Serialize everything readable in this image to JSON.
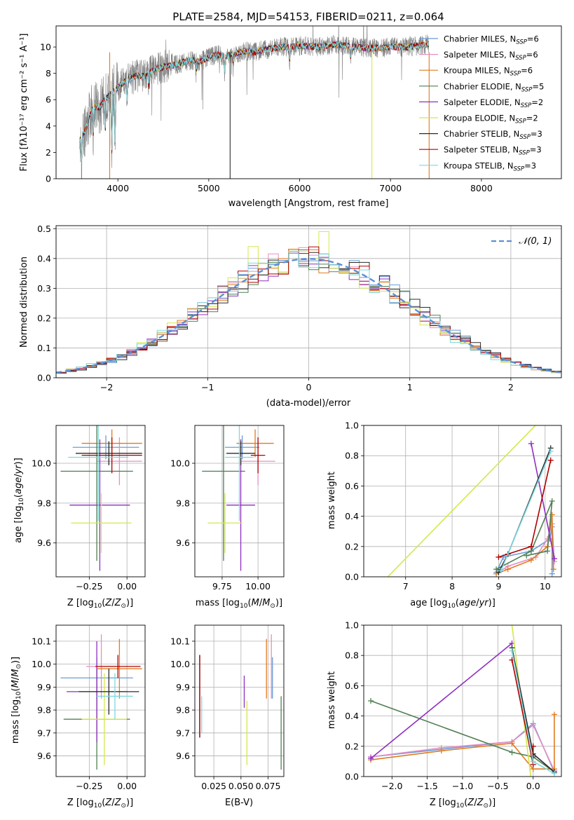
{
  "title": "PLATE=2584, MJD=54153, FIBERID=0211, z=0.064",
  "colors": {
    "chabrier_miles": "#6a9bd8",
    "salpeter_miles": "#e58fc3",
    "kroupa_miles": "#e07b20",
    "chabrier_elodie": "#4f7f52",
    "salpeter_elodie": "#8f2fbf",
    "kroupa_elodie": "#d4e84a",
    "chabrier_stelib": "#2b2b2b",
    "salpeter_stelib": "#b00000",
    "kroupa_stelib": "#7dd8e0",
    "gaussian": "#5b8fd6"
  },
  "chart_data": [
    {
      "id": "spectrum",
      "type": "line",
      "title": "PLATE=2584, MJD=54153, FIBERID=0211, z=0.064",
      "xlabel": "wavelength [Angstrom, rest frame]",
      "ylabel": "Flux [fλ10⁻¹⁷ erg cm⁻² s⁻¹ A⁻¹]",
      "xlim": [
        3320,
        8880
      ],
      "ylim": [
        0,
        11.6
      ],
      "xticks": [
        4000,
        5000,
        6000,
        7000,
        8000
      ],
      "yticks": [
        0,
        2,
        4,
        6,
        8,
        10
      ],
      "grid": false,
      "legend_position": "top-right",
      "continuum": {
        "x": [
          3580,
          3650,
          3700,
          3750,
          3800,
          3850,
          3900,
          3950,
          4000,
          4100,
          4200,
          4300,
          4400,
          4500,
          4600,
          4700,
          4800,
          4900,
          5000,
          5100,
          5200,
          5300,
          5400,
          5500,
          5600,
          5700,
          5800,
          5900,
          6000,
          6200,
          6400,
          6600,
          6800,
          7000,
          7200,
          7400
        ],
        "y": [
          3.0,
          3.8,
          5.0,
          5.5,
          5.4,
          6.0,
          6.3,
          6.6,
          6.9,
          7.5,
          7.8,
          7.8,
          8.3,
          8.5,
          8.6,
          8.8,
          9.0,
          8.9,
          9.2,
          9.4,
          9.3,
          9.5,
          9.7,
          9.6,
          9.8,
          9.9,
          10.0,
          10.0,
          10.1,
          10.0,
          10.2,
          10.0,
          9.9,
          10.0,
          10.0,
          10.2
        ]
      },
      "series": [
        {
          "name": "Chabrier MILES, N_SSP=6",
          "color_key": "chabrier_miles"
        },
        {
          "name": "Salpeter MILES, N_SSP=6",
          "color_key": "salpeter_miles"
        },
        {
          "name": "Kroupa MILES, N_SSP=6",
          "color_key": "kroupa_miles"
        },
        {
          "name": "Chabrier ELODIE, N_SSP=5",
          "color_key": "chabrier_elodie"
        },
        {
          "name": "Salpeter ELODIE, N_SSP=2",
          "color_key": "salpeter_elodie"
        },
        {
          "name": "Kroupa ELODIE, N_SSP=2",
          "color_key": "kroupa_elodie"
        },
        {
          "name": "Chabrier STELIB, N_SSP=3",
          "color_key": "chabrier_stelib"
        },
        {
          "name": "Salpeter STELIB, N_SSP=3",
          "color_key": "salpeter_stelib"
        },
        {
          "name": "Kroupa STELIB, N_SSP=3",
          "color_key": "kroupa_stelib"
        }
      ],
      "legend_entries": [
        {
          "text": "Chabrier MILES, N",
          "sub": "SSP",
          "suffix": "=6",
          "color_key": "chabrier_miles"
        },
        {
          "text": "Salpeter MILES, N",
          "sub": "SSP",
          "suffix": "=6",
          "color_key": "salpeter_miles"
        },
        {
          "text": "Kroupa MILES, N",
          "sub": "SSP",
          "suffix": "=6",
          "color_key": "kroupa_miles"
        },
        {
          "text": "Chabrier ELODIE, N",
          "sub": "SSP",
          "suffix": "=5",
          "color_key": "chabrier_elodie"
        },
        {
          "text": "Salpeter ELODIE, N",
          "sub": "SSP",
          "suffix": "=2",
          "color_key": "salpeter_elodie"
        },
        {
          "text": "Kroupa ELODIE, N",
          "sub": "SSP",
          "suffix": "=2",
          "color_key": "kroupa_elodie"
        },
        {
          "text": "Chabrier STELIB, N",
          "sub": "SSP",
          "suffix": "=3",
          "color_key": "chabrier_stelib"
        },
        {
          "text": "Salpeter STELIB, N",
          "sub": "SSP",
          "suffix": "=3",
          "color_key": "salpeter_stelib"
        },
        {
          "text": "Kroupa STELIB, N",
          "sub": "SSP",
          "suffix": "=3",
          "color_key": "kroupa_stelib"
        }
      ]
    },
    {
      "id": "residuals",
      "type": "histogram",
      "xlabel": "(data-model)/error",
      "ylabel": "Normed distribution",
      "xlim": [
        -2.5,
        2.5
      ],
      "ylim": [
        0,
        0.51
      ],
      "xticks": [
        -2,
        -1,
        0,
        1,
        2
      ],
      "yticks": [
        0.0,
        0.1,
        0.2,
        0.3,
        0.4,
        0.5
      ],
      "grid": true,
      "legend_position": "top-right",
      "legend": "N(0,1)",
      "bin_width": 0.1,
      "gaussian": {
        "mean": 0,
        "sigma": 1
      }
    },
    {
      "id": "age_vs_Z",
      "type": "errorbar",
      "xlabel": "Z [log10(Z/Z☉)]",
      "ylabel": "age  [log10(age/yr)]",
      "xlim": [
        -0.47,
        0.12
      ],
      "ylim": [
        9.43,
        10.19
      ],
      "xticks": [
        -0.25,
        0.0
      ],
      "xtick_labels": [
        "−0.25",
        "0.00"
      ],
      "yticks": [
        9.6,
        9.8,
        10.0
      ],
      "ytick_labels": [
        "9.6",
        "9.8",
        "10.0"
      ],
      "grid": true,
      "points": [
        {
          "color_key": "chabrier_miles",
          "x": -0.14,
          "xerr": 0.22,
          "y": 10.08,
          "yerr": 0.06
        },
        {
          "color_key": "salpeter_miles",
          "x": -0.05,
          "xerr": 0.15,
          "y": 10.01,
          "yerr": 0.12
        },
        {
          "color_key": "kroupa_miles",
          "x": -0.1,
          "xerr": 0.2,
          "y": 10.1,
          "yerr": 0.07
        },
        {
          "color_key": "chabrier_elodie",
          "x": -0.2,
          "xerr": 0.24,
          "y": 9.96,
          "yerr": 0.45
        },
        {
          "color_key": "salpeter_elodie",
          "x": -0.18,
          "xerr": 0.2,
          "y": 9.79,
          "yerr": 0.33
        },
        {
          "color_key": "kroupa_elodie",
          "x": -0.17,
          "xerr": 0.2,
          "y": 9.7,
          "yerr": 0.15
        },
        {
          "color_key": "chabrier_stelib",
          "x": -0.12,
          "xerr": 0.22,
          "y": 10.05,
          "yerr": 0.06
        },
        {
          "color_key": "salpeter_stelib",
          "x": -0.1,
          "xerr": 0.2,
          "y": 10.04,
          "yerr": 0.09
        },
        {
          "color_key": "kroupa_stelib",
          "x": -0.19,
          "xerr": 0.2,
          "y": 10.03,
          "yerr": 0.32
        }
      ]
    },
    {
      "id": "age_vs_mass",
      "type": "errorbar",
      "xlabel": "mass [log10(M/M☉)]",
      "ylabel": "",
      "xlim": [
        9.56,
        10.18
      ],
      "ylim": [
        9.43,
        10.19
      ],
      "xticks": [
        9.75,
        10.0
      ],
      "xtick_labels": [
        "9.75",
        "10.00"
      ],
      "yticks": [
        9.6,
        9.8,
        10.0
      ],
      "ytick_labels": [
        "9.6",
        "9.8",
        "10.0"
      ],
      "grid": true,
      "points": [
        {
          "color_key": "chabrier_miles",
          "x": 9.89,
          "xerr": 0.12,
          "y": 10.08,
          "yerr": 0.06
        },
        {
          "color_key": "salpeter_miles",
          "x": 10.0,
          "xerr": 0.12,
          "y": 10.01,
          "yerr": 0.12
        },
        {
          "color_key": "kroupa_miles",
          "x": 9.98,
          "xerr": 0.13,
          "y": 10.1,
          "yerr": 0.07
        },
        {
          "color_key": "chabrier_elodie",
          "x": 9.76,
          "xerr": 0.15,
          "y": 9.96,
          "yerr": 0.45
        },
        {
          "color_key": "salpeter_elodie",
          "x": 9.88,
          "xerr": 0.1,
          "y": 9.79,
          "yerr": 0.33
        },
        {
          "color_key": "kroupa_elodie",
          "x": 9.77,
          "xerr": 0.12,
          "y": 9.7,
          "yerr": 0.15
        },
        {
          "color_key": "chabrier_stelib",
          "x": 9.88,
          "xerr": 0.1,
          "y": 10.05,
          "yerr": 0.06
        },
        {
          "color_key": "salpeter_stelib",
          "x": 10.0,
          "xerr": 0.05,
          "y": 10.04,
          "yerr": 0.09
        },
        {
          "color_key": "kroupa_stelib",
          "x": 9.87,
          "xerr": 0.1,
          "y": 10.03,
          "yerr": 0.32
        }
      ]
    },
    {
      "id": "weight_vs_age",
      "type": "line",
      "xlabel": "age  [log10(age/yr)]",
      "ylabel": "mass weight",
      "xlim": [
        6.1,
        10.35
      ],
      "ylim": [
        0,
        1.0
      ],
      "xticks": [
        7,
        8,
        9,
        10
      ],
      "xtick_labels": [
        "7",
        "8",
        "9",
        "10"
      ],
      "yticks": [
        0.0,
        0.2,
        0.4,
        0.6,
        0.8,
        1.0
      ],
      "ytick_labels": [
        "0.0",
        "0.2",
        "0.4",
        "0.6",
        "0.8",
        "1.0"
      ],
      "grid": true,
      "series": [
        {
          "color_key": "chabrier_miles",
          "x": [
            8.95,
            9.1,
            9.7,
            10.1,
            10.15,
            10.15
          ],
          "y": [
            0.03,
            0.13,
            0.17,
            0.25,
            0.33,
            0.02
          ]
        },
        {
          "color_key": "salpeter_miles",
          "x": [
            9.0,
            9.2,
            9.8,
            10.05,
            10.15,
            10.2
          ],
          "y": [
            0.03,
            0.07,
            0.13,
            0.25,
            0.35,
            0.1
          ]
        },
        {
          "color_key": "kroupa_miles",
          "x": [
            8.95,
            9.2,
            9.7,
            10.05,
            10.15,
            10.18
          ],
          "y": [
            0.02,
            0.05,
            0.11,
            0.2,
            0.41,
            0.05
          ]
        },
        {
          "color_key": "chabrier_elodie",
          "x": [
            8.95,
            9.7,
            10.15,
            10.05,
            9.6
          ],
          "y": [
            0.05,
            0.17,
            0.5,
            0.17,
            0.14
          ]
        },
        {
          "color_key": "salpeter_elodie",
          "x": [
            9.7,
            10.2
          ],
          "y": [
            0.88,
            0.12
          ]
        },
        {
          "color_key": "kroupa_elodie",
          "x": [
            6.3,
            9.95
          ],
          "y": [
            -0.1,
            1.05
          ]
        },
        {
          "color_key": "chabrier_stelib",
          "x": [
            9.0,
            9.2,
            10.12
          ],
          "y": [
            0.03,
            0.15,
            0.85
          ]
        },
        {
          "color_key": "salpeter_stelib",
          "x": [
            9.0,
            9.7,
            10.12
          ],
          "y": [
            0.13,
            0.2,
            0.77
          ]
        },
        {
          "color_key": "kroupa_stelib",
          "x": [
            9.05,
            10.12
          ],
          "y": [
            0.04,
            0.83
          ]
        }
      ]
    },
    {
      "id": "mass_vs_Z",
      "type": "errorbar",
      "xlabel": "Z [log10(Z/Z☉)]",
      "ylabel": "mass [log10(M/M☉)]",
      "xlim": [
        -0.47,
        0.12
      ],
      "ylim": [
        9.51,
        10.17
      ],
      "xticks": [
        -0.25,
        0.0
      ],
      "xtick_labels": [
        "−0.25",
        "0.00"
      ],
      "yticks": [
        9.6,
        9.7,
        9.8,
        9.9,
        10.0,
        10.1
      ],
      "ytick_labels": [
        "9.6",
        "9.7",
        "9.8",
        "9.9",
        "10.0",
        "10.1"
      ],
      "grid": true,
      "points": [
        {
          "color_key": "chabrier_miles",
          "x": -0.2,
          "xerr": 0.24,
          "y": 9.94,
          "yerr": 0.09
        },
        {
          "color_key": "salpeter_miles",
          "x": -0.17,
          "xerr": 0.1,
          "y": 9.99,
          "yerr": 0.14
        },
        {
          "color_key": "kroupa_miles",
          "x": -0.05,
          "xerr": 0.15,
          "y": 9.98,
          "yerr": 0.13
        },
        {
          "color_key": "chabrier_elodie",
          "x": -0.2,
          "xerr": 0.22,
          "y": 9.76,
          "yerr": 0.22
        },
        {
          "color_key": "salpeter_elodie",
          "x": -0.2,
          "xerr": 0.2,
          "y": 9.88,
          "yerr": 0.22
        },
        {
          "color_key": "kroupa_elodie",
          "x": -0.15,
          "xerr": 0.15,
          "y": 9.76,
          "yerr": 0.2
        },
        {
          "color_key": "chabrier_stelib",
          "x": -0.12,
          "xerr": 0.2,
          "y": 9.88,
          "yerr": 0.1
        },
        {
          "color_key": "salpeter_stelib",
          "x": -0.06,
          "xerr": 0.15,
          "y": 9.99,
          "yerr": 0.05
        },
        {
          "color_key": "kroupa_stelib",
          "x": -0.08,
          "xerr": 0.12,
          "y": 9.86,
          "yerr": 0.1
        }
      ]
    },
    {
      "id": "mass_vs_ebv",
      "type": "errorbar",
      "xlabel": "E(B-V)",
      "ylabel": "",
      "xlim": [
        0.0075,
        0.0895
      ],
      "ylim": [
        9.51,
        10.17
      ],
      "xticks": [
        0.025,
        0.05,
        0.075
      ],
      "xtick_labels": [
        "0.025",
        "0.050",
        "0.075"
      ],
      "yticks": [
        9.6,
        9.7,
        9.8,
        9.9,
        10.0,
        10.1
      ],
      "ytick_labels": [
        "9.6",
        "9.7",
        "9.8",
        "9.9",
        "10.0",
        "10.1"
      ],
      "grid": true,
      "points": [
        {
          "color_key": "chabrier_miles",
          "x": 0.079,
          "xerr": 0,
          "y": 9.94,
          "yerr": 0.09
        },
        {
          "color_key": "salpeter_miles",
          "x": 0.078,
          "xerr": 0,
          "y": 9.99,
          "yerr": 0.14
        },
        {
          "color_key": "kroupa_miles",
          "x": 0.0735,
          "xerr": 0,
          "y": 9.98,
          "yerr": 0.13
        },
        {
          "color_key": "chabrier_elodie",
          "x": 0.087,
          "xerr": 0,
          "y": 9.7,
          "yerr": 0.16
        },
        {
          "color_key": "salpeter_elodie",
          "x": 0.053,
          "xerr": 0,
          "y": 9.88,
          "yerr": 0.07
        },
        {
          "color_key": "kroupa_elodie",
          "x": 0.0555,
          "xerr": 0,
          "y": 9.7,
          "yerr": 0.14
        },
        {
          "color_key": "chabrier_stelib",
          "x": 0.012,
          "xerr": 0,
          "y": 9.86,
          "yerr": 0.18
        },
        {
          "color_key": "salpeter_stelib",
          "x": 0.012,
          "xerr": 0,
          "y": 9.86,
          "yerr": 0.18
        },
        {
          "color_key": "kroupa_stelib",
          "x": 0.0138,
          "xerr": 0,
          "y": 9.78,
          "yerr": 0.08
        }
      ]
    },
    {
      "id": "weight_vs_Z",
      "type": "line",
      "xlabel": "Z [log10(Z/Z☉)]",
      "ylabel": "mass weight",
      "xlim": [
        -2.4,
        0.4
      ],
      "ylim": [
        0,
        1.0
      ],
      "xticks": [
        -2.0,
        -1.5,
        -1.0,
        -0.5,
        0.0
      ],
      "xtick_labels": [
        "−2.0",
        "−1.5",
        "−1.0",
        "−0.5",
        "0.0"
      ],
      "yticks": [
        0.0,
        0.2,
        0.4,
        0.6,
        0.8,
        1.0
      ],
      "ytick_labels": [
        "0.0",
        "0.2",
        "0.4",
        "0.6",
        "0.8",
        "1.0"
      ],
      "grid": true,
      "series": [
        {
          "color_key": "chabrier_miles",
          "x": [
            -2.3,
            -0.3,
            0.0,
            0.3
          ],
          "y": [
            0.13,
            0.23,
            0.35,
            0.03
          ]
        },
        {
          "color_key": "salpeter_miles",
          "x": [
            -2.3,
            -1.3,
            -0.3,
            0.0,
            0.3
          ],
          "y": [
            0.13,
            0.19,
            0.23,
            0.34,
            0.04
          ]
        },
        {
          "color_key": "kroupa_miles",
          "x": [
            -2.3,
            -1.3,
            -0.3,
            0.0,
            0.3,
            0.3
          ],
          "y": [
            0.11,
            0.17,
            0.22,
            0.05,
            0.05,
            0.41
          ]
        },
        {
          "color_key": "chabrier_elodie",
          "x": [
            -2.3,
            -0.3,
            0.0,
            0.3
          ],
          "y": [
            0.5,
            0.16,
            0.13,
            0.03
          ]
        },
        {
          "color_key": "salpeter_elodie",
          "x": [
            -2.3,
            -0.3
          ],
          "y": [
            0.12,
            0.88
          ]
        },
        {
          "color_key": "kroupa_elodie",
          "x": [
            -0.02,
            -0.3
          ],
          "y": [
            -0.05,
            1.0
          ]
        },
        {
          "color_key": "chabrier_stelib",
          "x": [
            -0.3,
            0.0,
            0.3
          ],
          "y": [
            0.85,
            0.15,
            0.03
          ]
        },
        {
          "color_key": "salpeter_stelib",
          "x": [
            -0.3,
            0.0,
            0.0
          ],
          "y": [
            0.77,
            0.08,
            0.2
          ]
        },
        {
          "color_key": "kroupa_stelib",
          "x": [
            -0.3,
            0.0,
            0.3
          ],
          "y": [
            0.83,
            0.1,
            0.02
          ]
        }
      ]
    }
  ]
}
